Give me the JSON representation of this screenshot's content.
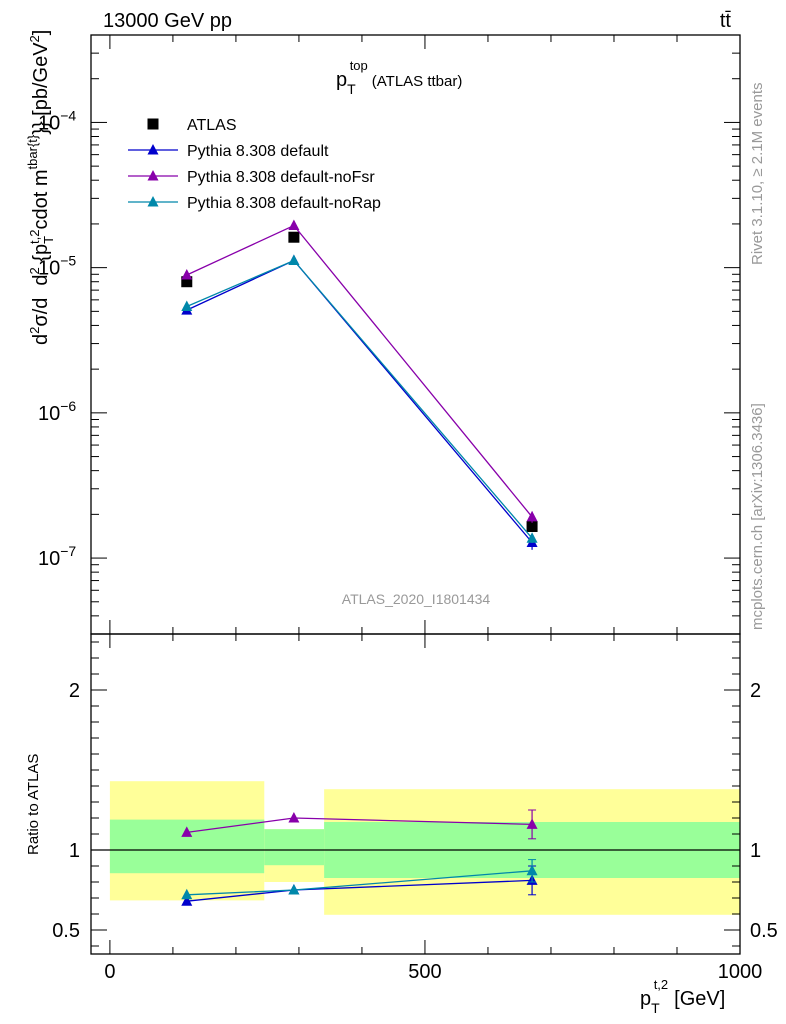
{
  "header": {
    "left": "13000 GeV pp",
    "right": "tt̄"
  },
  "side_labels": {
    "rivet": "Rivet 3.1.10, ≥ 2.1M events",
    "mcplots": "mcplots.cern.ch [arXiv:1306.3436]"
  },
  "colors": {
    "atlas": "#000000",
    "default": "#0000cc",
    "noFsr": "#8800aa",
    "noRap": "#0088aa",
    "band_inner": "#99ff99",
    "band_outer": "#ffff99",
    "watermark": "#999999"
  },
  "chart_data": [
    {
      "type": "scatter",
      "title": "p_T^top (ATLAS ttbar)",
      "title_main": "p",
      "title_sub": "T",
      "title_sup": "top",
      "title_rest": "(ATLAS ttbar)",
      "ylabel": "d²σ/d{p_T^t,2 cdot m^tbar{t}} [pb/GeV²]",
      "ylabel_parts": {
        "part1": "d",
        "part2": "2",
        "part3": "σ/d",
        "part4": "d",
        "part5": "2",
        "part6": " {p",
        "part7": "T",
        "part8": "t,2",
        "part9": "cdot m",
        "part10": "tbar{t}",
        "part11": "}} [pb/GeV",
        "part12": "2",
        "part13": "]"
      },
      "yscale": "log",
      "ylim": [
        3e-08,
        0.0004
      ],
      "xlim": [
        -30,
        1000
      ],
      "yticks": [
        {
          "value": 1e-07,
          "base": "10",
          "exp": "−7"
        },
        {
          "value": 1e-06,
          "base": "10",
          "exp": "−6"
        },
        {
          "value": 1e-05,
          "base": "10",
          "exp": "−5"
        },
        {
          "value": 0.0001,
          "base": "10",
          "exp": "−4"
        }
      ],
      "legend_position": "top-left",
      "watermark": "ATLAS_2020_I1801434",
      "series": [
        {
          "name": "ATLAS",
          "marker": "square",
          "x": [
            122,
            292,
            670
          ],
          "y": [
            8e-06,
            1.62e-05,
            1.65e-07
          ]
        },
        {
          "name": "Pythia 8.308 default",
          "marker": "triangle",
          "x": [
            122,
            292,
            670
          ],
          "y": [
            5.1e-06,
            1.12e-05,
            1.28e-07
          ],
          "yerr": [
            0,
            0,
            1.4e-08
          ]
        },
        {
          "name": "Pythia 8.308 default-noFsr",
          "marker": "triangle",
          "x": [
            122,
            292,
            670
          ],
          "y": [
            8.9e-06,
            1.95e-05,
            1.92e-07
          ],
          "yerr": [
            0,
            0,
            1.7e-08
          ]
        },
        {
          "name": "Pythia 8.308 default-noRap",
          "marker": "triangle",
          "x": [
            122,
            292,
            670
          ],
          "y": [
            5.4e-06,
            1.12e-05,
            1.37e-07
          ],
          "yerr": [
            0,
            0,
            1e-08
          ]
        }
      ]
    },
    {
      "type": "line",
      "ylabel": "Ratio to ATLAS",
      "xlabel": "p_T^t,2 [GeV]",
      "xlabel_parts": {
        "main": "p",
        "sub": "T",
        "sup": "t,2",
        "unit": "[GeV]"
      },
      "ylim": [
        0.35,
        2.35
      ],
      "xlim": [
        -30,
        1000
      ],
      "yticks": [
        0.5,
        1,
        2
      ],
      "xticks": [
        0,
        500,
        1000
      ],
      "reference_line": 1,
      "bands": [
        {
          "x0": 0,
          "x1": 245,
          "outer": [
            0.685,
            1.43
          ],
          "inner": [
            0.855,
            1.19
          ]
        },
        {
          "x0": 245,
          "x1": 340,
          "outer": [
            0.8,
            1.13
          ],
          "inner": [
            0.905,
            1.13
          ]
        },
        {
          "x0": 340,
          "x1": 1000,
          "outer": [
            0.595,
            1.38
          ],
          "inner": [
            0.825,
            1.175
          ]
        }
      ],
      "series": [
        {
          "name": "Pythia 8.308 default",
          "x": [
            122,
            292,
            670
          ],
          "y": [
            0.68,
            0.75,
            0.81
          ],
          "yerr": [
            0.01,
            0.02,
            0.09
          ]
        },
        {
          "name": "Pythia 8.308 default-noFsr",
          "x": [
            122,
            292,
            670
          ],
          "y": [
            1.11,
            1.2,
            1.16
          ],
          "yerr": [
            0.01,
            0.02,
            0.09
          ]
        },
        {
          "name": "Pythia 8.308 default-noRap",
          "x": [
            122,
            292,
            670
          ],
          "y": [
            0.72,
            0.75,
            0.87
          ],
          "yerr": [
            0.02,
            0.02,
            0.07
          ]
        }
      ]
    }
  ]
}
